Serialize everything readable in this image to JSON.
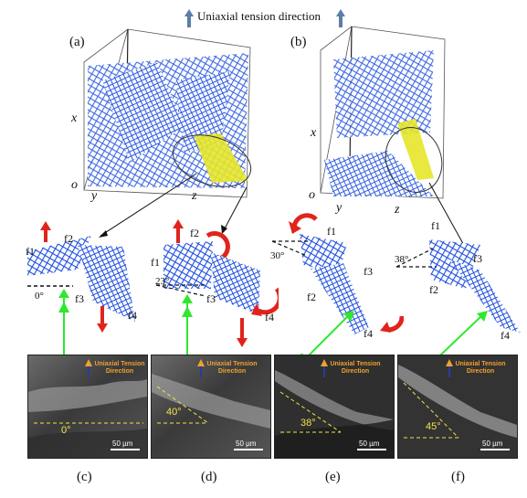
{
  "header": {
    "title": "Uniaxial tension direction"
  },
  "top_panels": [
    {
      "label": "(a)",
      "axes": {
        "x": "x",
        "o": "o",
        "y": "y",
        "z": "z"
      }
    },
    {
      "label": "(b)",
      "axes": {
        "x": "x",
        "o": "o",
        "y": "y",
        "z": "z"
      }
    }
  ],
  "fiber_panels": [
    {
      "flabels": [
        "f1",
        "f2",
        "f3",
        "f4"
      ],
      "angle": "0°"
    },
    {
      "flabels": [
        "f2",
        "f1",
        "f3",
        "f4"
      ],
      "angle": "23°"
    },
    {
      "flabels": [
        "f1",
        "f3",
        "f2",
        "f4"
      ],
      "angle": "30°"
    },
    {
      "flabels": [
        "f1",
        "f3",
        "f2",
        "f4"
      ],
      "angle": "38°"
    }
  ],
  "sem_panels": [
    {
      "label": "(c)",
      "angle": "0°",
      "tension_text": "Uniaxial Tension Direction",
      "scale": "50 µm"
    },
    {
      "label": "(d)",
      "angle": "40°",
      "tension_text": "Uniaxial Tension Direction",
      "scale": "50 µm"
    },
    {
      "label": "(e)",
      "angle": "38°",
      "tension_text": "Uniaxial Tension Direction",
      "scale": "50 µm"
    },
    {
      "label": "(f)",
      "angle": "45°",
      "tension_text": "Uniaxial Tension Direction",
      "scale": "50 µm"
    }
  ],
  "colors": {
    "fiber_blue": "#1f4fe0",
    "highlight_yellow": "#e6e62a",
    "arrow_red": "#e0241c",
    "arrow_green": "#2ee82e",
    "tension_arrow": "#5a7ea8"
  }
}
